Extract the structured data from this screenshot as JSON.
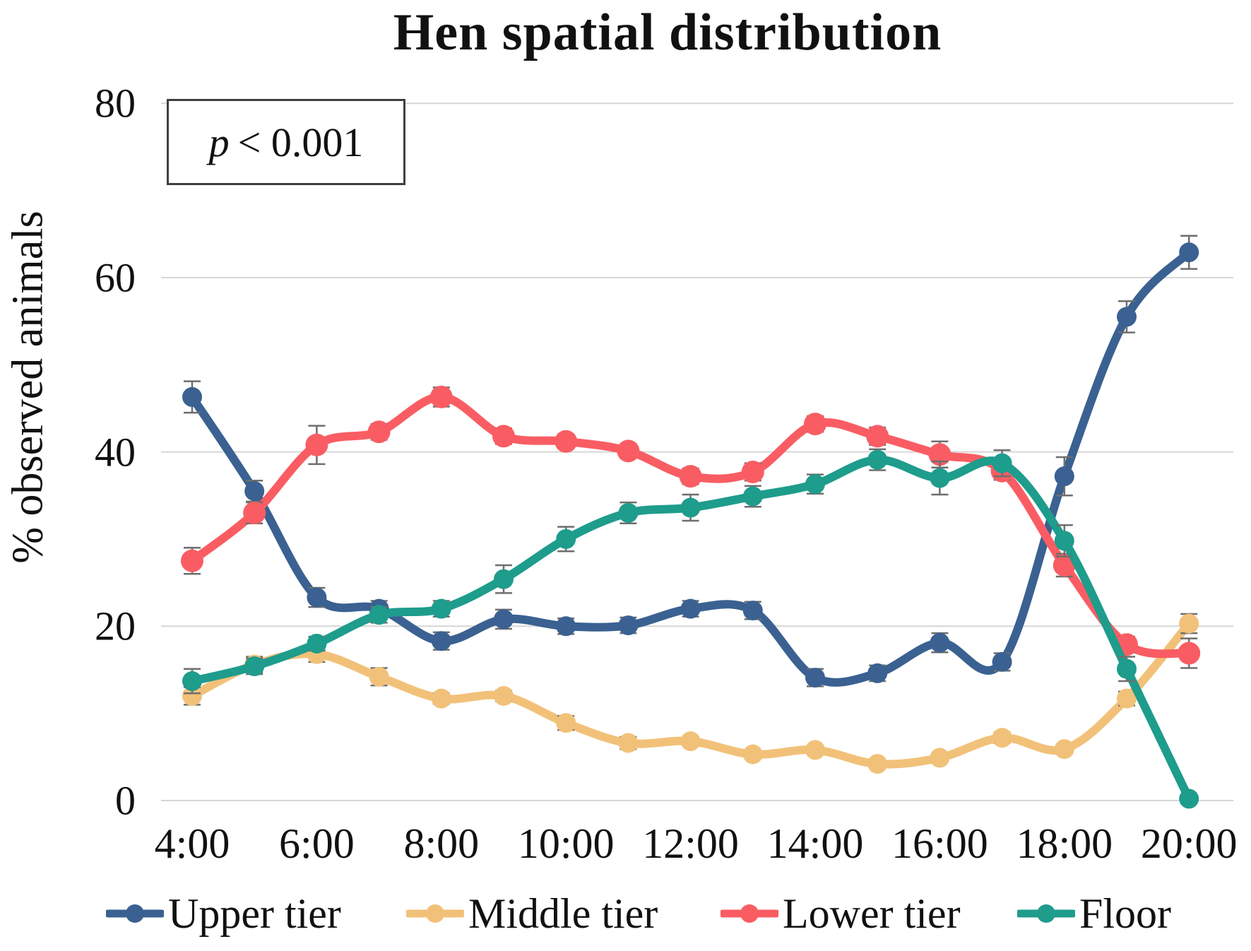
{
  "title": "Hen spatial distribution",
  "annotation": {
    "symbol": "p",
    "value": "< 0.001"
  },
  "y_axis": {
    "label": "% observed animals",
    "ticks": [
      0,
      20,
      40,
      60,
      80
    ]
  },
  "x_axis": {
    "tick_labels": [
      "4:00",
      "6:00",
      "8:00",
      "10:00",
      "12:00",
      "14:00",
      "16:00",
      "18:00",
      "20:00"
    ]
  },
  "legend": [
    "Upper tier",
    "Middle tier",
    "Lower tier",
    "Floor"
  ],
  "colors": {
    "upper_tier": "#3a6191",
    "middle_tier": "#f2c179",
    "lower_tier": "#f95d63",
    "floor": "#1e9c8c",
    "gridline": "#d6d6d6",
    "error_bar": "#6e6e6e"
  },
  "chart_data": {
    "type": "line",
    "title": "Hen spatial distribution",
    "annotation": "p < 0.001",
    "xlabel": "",
    "ylabel": "% observed animals",
    "ylim": [
      0,
      80
    ],
    "grid": true,
    "legend_position": "bottom",
    "x": [
      "4:00",
      "5:00",
      "6:00",
      "7:00",
      "8:00",
      "9:00",
      "10:00",
      "11:00",
      "12:00",
      "13:00",
      "14:00",
      "15:00",
      "16:00",
      "17:00",
      "18:00",
      "19:00",
      "20:00"
    ],
    "x_ticks_shown": [
      "4:00",
      "6:00",
      "8:00",
      "10:00",
      "12:00",
      "14:00",
      "16:00",
      "18:00",
      "20:00"
    ],
    "series": [
      {
        "name": "Upper tier",
        "color": "#3a6191",
        "marker_radius": 14,
        "values": [
          46.3,
          35.5,
          23.3,
          22.0,
          18.3,
          20.8,
          20.0,
          20.1,
          22.0,
          21.8,
          14.1,
          14.6,
          18.1,
          15.9,
          37.2,
          55.5,
          62.9
        ],
        "errors": [
          1.8,
          1.2,
          1.1,
          0.9,
          1.0,
          1.1,
          0.9,
          0.9,
          0.9,
          1.0,
          1.0,
          0.9,
          1.1,
          1.0,
          2.2,
          1.8,
          1.9
        ]
      },
      {
        "name": "Middle tier",
        "color": "#f2c179",
        "marker_radius": 14,
        "values": [
          12.0,
          15.6,
          16.8,
          14.2,
          11.7,
          12.0,
          8.9,
          6.6,
          6.8,
          5.3,
          5.8,
          4.2,
          4.9,
          7.2,
          5.9,
          11.7,
          20.3
        ],
        "errors": [
          1.0,
          0.9,
          0.9,
          1.0,
          0.6,
          0.6,
          0.8,
          0.7,
          0.5,
          0.4,
          0.5,
          0.4,
          0.5,
          0.6,
          0.5,
          0.8,
          1.1
        ]
      },
      {
        "name": "Lower tier",
        "color": "#f95d63",
        "marker_radius": 16,
        "values": [
          27.5,
          33.0,
          40.8,
          42.3,
          46.3,
          41.8,
          41.2,
          40.1,
          37.2,
          37.7,
          43.2,
          41.8,
          39.7,
          37.8,
          27.0,
          17.9,
          16.9
        ],
        "errors": [
          1.5,
          1.2,
          2.2,
          0.9,
          1.1,
          0.9,
          0.8,
          0.8,
          0.9,
          1.0,
          0.9,
          1.0,
          1.5,
          1.0,
          1.3,
          0.9,
          1.7
        ]
      },
      {
        "name": "Floor",
        "color": "#1e9c8c",
        "marker_radius": 14,
        "values": [
          13.7,
          15.4,
          18.0,
          21.3,
          22.0,
          25.4,
          30.0,
          33.0,
          33.6,
          34.9,
          36.3,
          39.1,
          37.0,
          38.7,
          29.8,
          15.1,
          0.2
        ],
        "errors": [
          1.4,
          0.9,
          0.8,
          0.9,
          0.9,
          1.6,
          1.4,
          1.2,
          1.5,
          1.2,
          1.1,
          1.2,
          1.9,
          1.5,
          1.8,
          1.4,
          0.4
        ]
      }
    ]
  }
}
